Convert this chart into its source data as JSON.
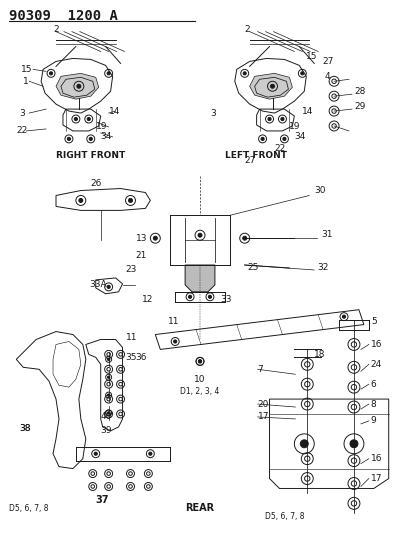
{
  "bg_color": "#ffffff",
  "fig_width": 4.04,
  "fig_height": 5.33,
  "dpi": 100,
  "header": "90309  1200 A",
  "right_front": "RIGHT FRONT",
  "left_front": "LEFT FRONT",
  "rear": "REAR",
  "d1234": "D1, 2, 3, 4",
  "d5678_left": "D5, 6, 7, 8",
  "d5678_right": "D5, 6, 7, 8",
  "line_color": "#1a1a1a",
  "text_color": "#1a1a1a"
}
